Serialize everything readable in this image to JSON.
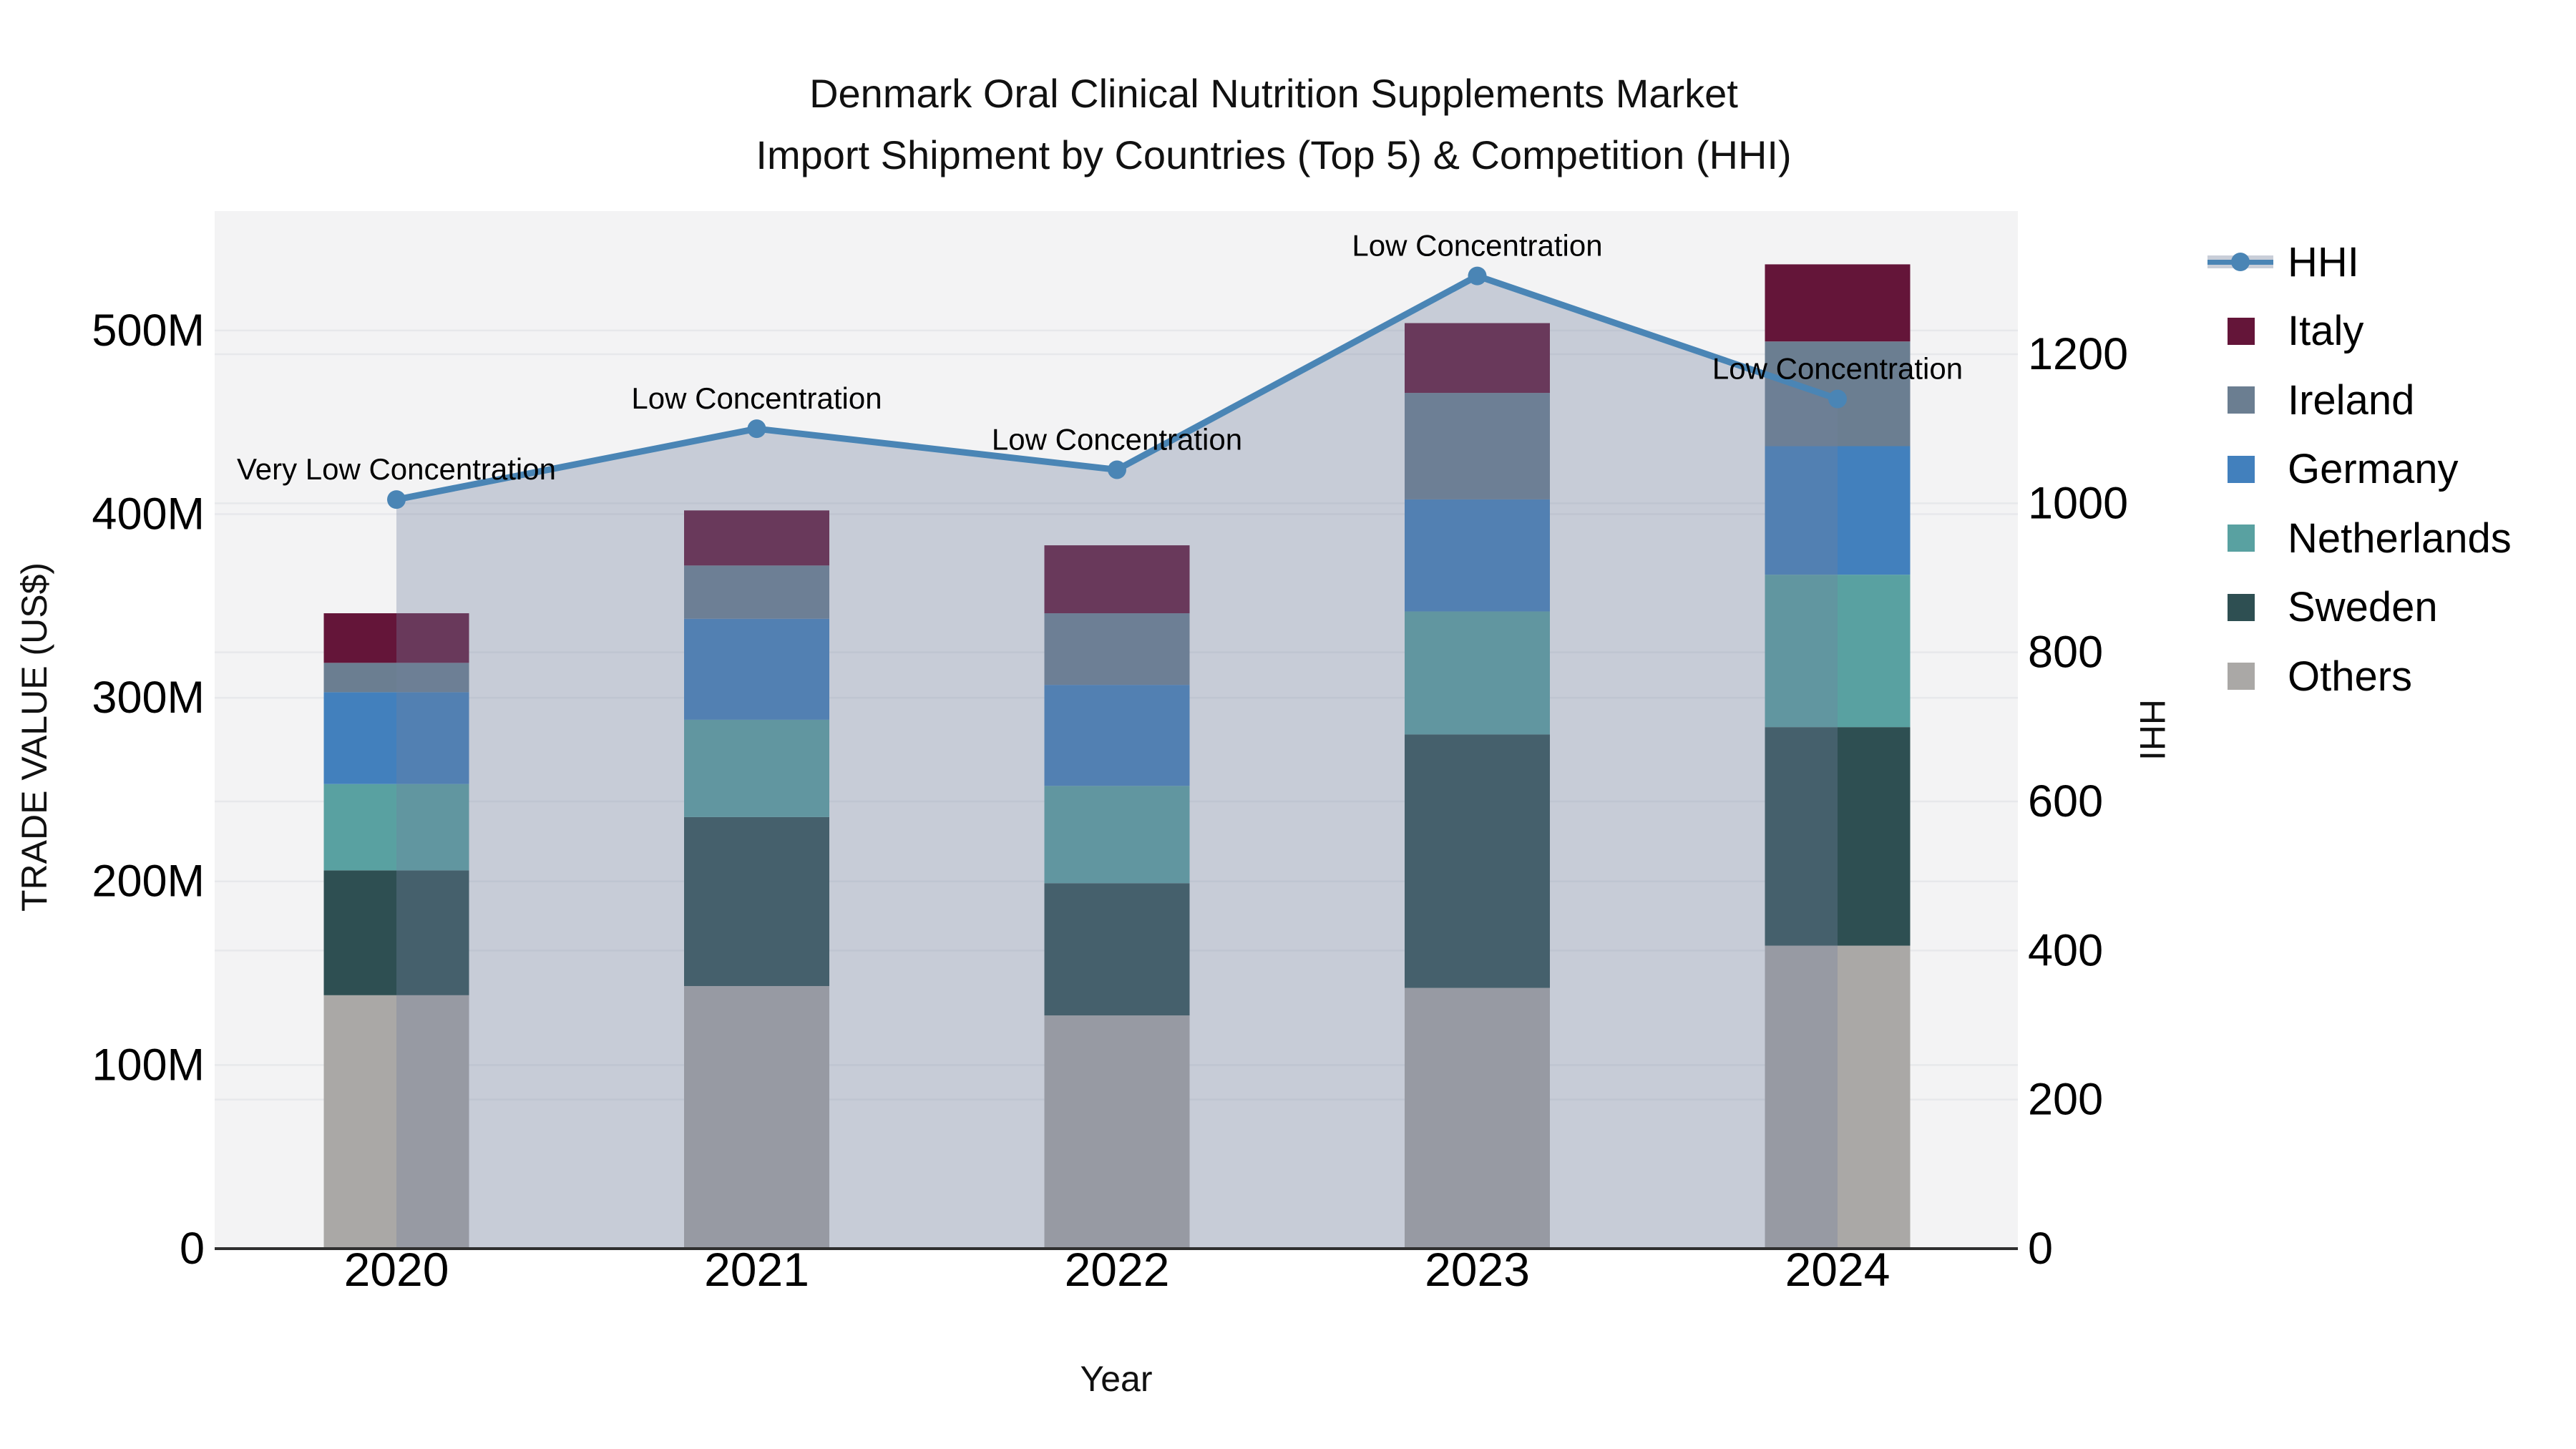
{
  "page": {
    "background": "#ffffff"
  },
  "colors": {
    "hhi_line": "#4a85b5",
    "area_fill_rgba": "rgba(113,130,158,0.34)",
    "plot_background": "#f3f3f4",
    "gridline": "#e7e8eb",
    "axis_line": "#2f2f2f",
    "text": "#111111",
    "italy": "#641539",
    "ireland": "#6b7e91",
    "germany": "#4280bd",
    "netherlands": "#59a1a1",
    "sweden": "#2e4f52",
    "others": "#aaa8a6"
  },
  "chart_data": {
    "type": "combo: stacked bar + line",
    "title_line1": "Denmark Oral Clinical Nutrition Supplements Market",
    "title_line2": "Import Shipment by Countries (Top 5) & Competition (HHI)",
    "categories": [
      "2020",
      "2021",
      "2022",
      "2023",
      "2024"
    ],
    "value_unit": "M",
    "stack_series": [
      {
        "name": "Others",
        "color_key": "others",
        "values": [
          138,
          143,
          127,
          142,
          165
        ]
      },
      {
        "name": "Sweden",
        "color_key": "sweden",
        "values": [
          68,
          92,
          72,
          138,
          119
        ]
      },
      {
        "name": "Netherlands",
        "color_key": "netherlands",
        "values": [
          47,
          53,
          53,
          67,
          83
        ]
      },
      {
        "name": "Germany",
        "color_key": "germany",
        "values": [
          50,
          55,
          55,
          61,
          70
        ]
      },
      {
        "name": "Ireland",
        "color_key": "ireland",
        "values": [
          16,
          29,
          39,
          58,
          57
        ]
      },
      {
        "name": "Italy",
        "color_key": "italy",
        "values": [
          27,
          30,
          37,
          38,
          42
        ]
      }
    ],
    "line_series": {
      "name": "HHI",
      "values": [
        1005,
        1100,
        1045,
        1305,
        1140
      ]
    },
    "annotations": [
      "Very Low Concentration",
      "Low Concentration",
      "Low Concentration",
      "Low Concentration",
      "Low Concentration"
    ],
    "x_axis": {
      "label": "Year"
    },
    "left_axis": {
      "label": "TRADE VALUE (US$)",
      "ticks": [
        "0",
        "100M",
        "200M",
        "300M",
        "400M",
        "500M"
      ],
      "tick_values": [
        0,
        100,
        200,
        300,
        400,
        500
      ],
      "range": [
        0,
        565
      ]
    },
    "right_axis": {
      "label": "HHI",
      "ticks": [
        "0",
        "200",
        "400",
        "600",
        "800",
        "1000",
        "1200"
      ],
      "tick_values": [
        0,
        200,
        400,
        600,
        800,
        1000,
        1200
      ],
      "range": [
        0,
        1392
      ]
    },
    "legend": [
      {
        "label": "HHI",
        "type": "line"
      },
      {
        "label": "Italy",
        "type": "swatch",
        "color_key": "italy"
      },
      {
        "label": "Ireland",
        "type": "swatch",
        "color_key": "ireland"
      },
      {
        "label": "Germany",
        "type": "swatch",
        "color_key": "germany"
      },
      {
        "label": "Netherlands",
        "type": "swatch",
        "color_key": "netherlands"
      },
      {
        "label": "Sweden",
        "type": "swatch",
        "color_key": "sweden"
      },
      {
        "label": "Others",
        "type": "swatch",
        "color_key": "others"
      }
    ]
  }
}
